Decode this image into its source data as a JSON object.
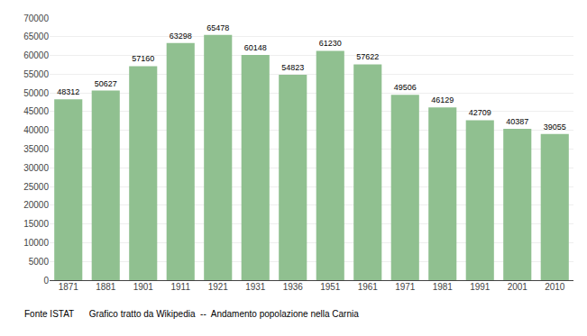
{
  "chart_data": {
    "type": "bar",
    "categories": [
      "1871",
      "1881",
      "1901",
      "1911",
      "1921",
      "1931",
      "1936",
      "1951",
      "1961",
      "1971",
      "1981",
      "1991",
      "2001",
      "2010"
    ],
    "values": [
      48312,
      50627,
      57160,
      63298,
      65478,
      60148,
      54823,
      61230,
      57622,
      49506,
      46129,
      42709,
      40387,
      39055
    ],
    "color": "#90c090",
    "ylim": [
      0,
      70000
    ],
    "yticks": [
      0,
      5000,
      10000,
      15000,
      20000,
      25000,
      30000,
      35000,
      40000,
      45000,
      50000,
      55000,
      60000,
      65000,
      70000
    ],
    "grid": true,
    "data_labels": true,
    "annotations": [
      "Fonte ISTAT      Grafico tratto da Wikipedia  --  Andamento popolazione nella Carnia"
    ]
  }
}
